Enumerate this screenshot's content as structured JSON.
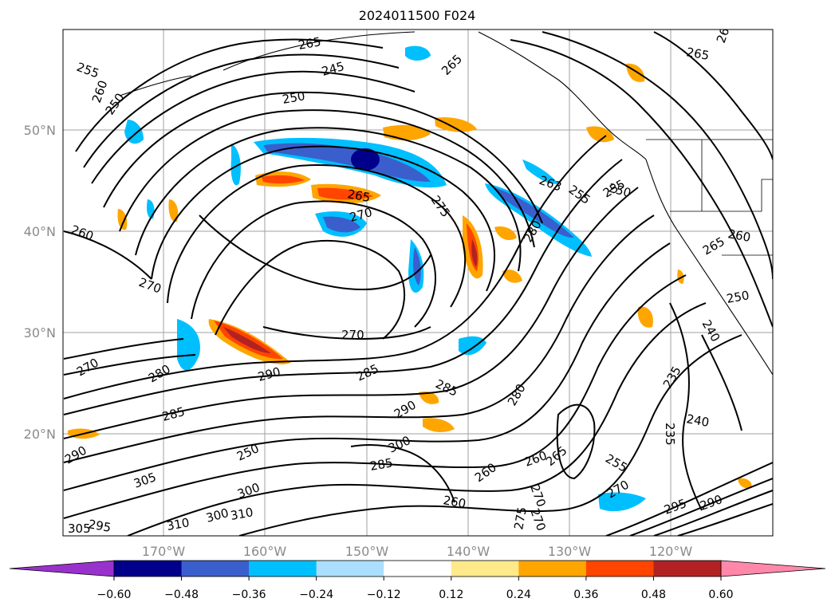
{
  "title": "2024011500 F024",
  "latitude_labels": [
    "50°N",
    "40°N",
    "30°N",
    "20°N"
  ],
  "longitude_labels": [
    "170°W",
    "160°W",
    "150°W",
    "140°W",
    "130°W",
    "120°W"
  ],
  "colorbar": {
    "ticks": [
      "−0.60",
      "−0.48",
      "−0.36",
      "−0.24",
      "−0.12",
      "0.12",
      "0.24",
      "0.36",
      "0.48",
      "0.60"
    ],
    "colors": [
      "#9932cc",
      "#00008b",
      "#3a5fcd",
      "#00bfff",
      "#aadfff",
      "#ffffff",
      "#ffe98a",
      "#ffa500",
      "#ff4500",
      "#b22222",
      "#ff88aa"
    ]
  },
  "contour_labels": [
    "255",
    "260",
    "265",
    "245",
    "250",
    "265",
    "255",
    "260",
    "265",
    "250",
    "265",
    "270",
    "275",
    "263",
    "255",
    "250",
    "260",
    "265",
    "260",
    "270",
    "250",
    "270",
    "280",
    "240",
    "235",
    "290",
    "285",
    "290",
    "300",
    "280",
    "240",
    "235",
    "285",
    "250",
    "260",
    "265",
    "270",
    "255",
    "260",
    "270",
    "280",
    "295",
    "290",
    "300",
    "305",
    "310",
    "295",
    "300",
    "310",
    "305",
    "285",
    "275",
    "270",
    "260",
    "290",
    "285",
    "270"
  ]
}
